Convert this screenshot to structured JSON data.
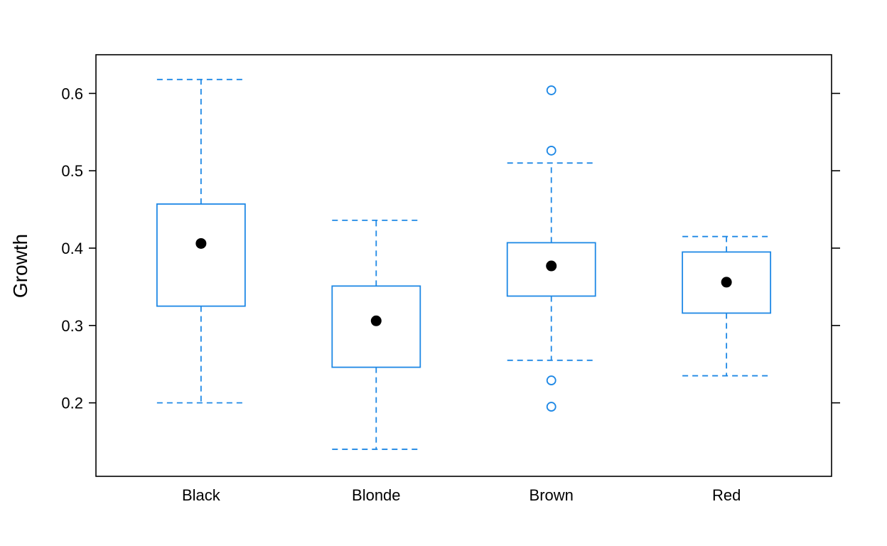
{
  "chart_data": {
    "type": "boxplot",
    "ylabel": "Growth",
    "xlabel": "",
    "ylim": [
      0.105,
      0.65
    ],
    "yticks": [
      0.2,
      0.3,
      0.4,
      0.5,
      0.6
    ],
    "ytick_labels": [
      "0.2",
      "0.3",
      "0.4",
      "0.5",
      "0.6"
    ],
    "categories": [
      "Black",
      "Blonde",
      "Brown",
      "Red"
    ],
    "boxes": [
      {
        "category": "Black",
        "whisker_low": 0.2,
        "q1": 0.325,
        "median": 0.406,
        "q3": 0.457,
        "whisker_high": 0.618,
        "outliers": []
      },
      {
        "category": "Blonde",
        "whisker_low": 0.14,
        "q1": 0.246,
        "median": 0.306,
        "q3": 0.351,
        "whisker_high": 0.436,
        "outliers": []
      },
      {
        "category": "Brown",
        "whisker_low": 0.255,
        "q1": 0.338,
        "median": 0.377,
        "q3": 0.407,
        "whisker_high": 0.51,
        "outliers": [
          0.604,
          0.526,
          0.229,
          0.195
        ]
      },
      {
        "category": "Red",
        "whisker_low": 0.235,
        "q1": 0.316,
        "median": 0.356,
        "q3": 0.395,
        "whisker_high": 0.415,
        "outliers": []
      }
    ],
    "grid": false,
    "colors": {
      "box": "#1e88e5",
      "median_dot": "#000000",
      "frame": "#000000"
    }
  }
}
